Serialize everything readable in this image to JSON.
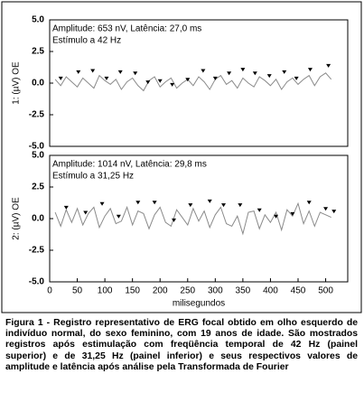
{
  "chart_data": [
    {
      "type": "line",
      "annotations": [
        "Amplitude: 653 nV, Latência:  27,0 ms",
        "Estímulo a 42 Hz"
      ],
      "ylabel": "1: (µV)  OE",
      "xlim": [
        0,
        540
      ],
      "ylim": [
        -5,
        5
      ],
      "yticks": [
        {
          "value": 5,
          "label": "5.0"
        },
        {
          "value": 2.5,
          "label": "2.5"
        },
        {
          "value": 0,
          "label": "0.0"
        },
        {
          "value": -2.5,
          "label": "-2.5"
        },
        {
          "value": -5,
          "label": "-5.0"
        }
      ],
      "series": [
        {
          "color": "#8a8a8a",
          "x": [
            10,
            20,
            30,
            40,
            50,
            60,
            70,
            80,
            90,
            100,
            110,
            120,
            130,
            140,
            150,
            160,
            170,
            180,
            190,
            200,
            210,
            220,
            230,
            240,
            250,
            260,
            270,
            280,
            290,
            300,
            310,
            320,
            330,
            340,
            350,
            360,
            370,
            380,
            390,
            400,
            410,
            420,
            430,
            440,
            450,
            460,
            470,
            480,
            490,
            500,
            510
          ],
          "values": [
            0.3,
            -0.2,
            0.5,
            0.1,
            -0.3,
            0.4,
            0.0,
            -0.4,
            0.6,
            0.2,
            -0.1,
            0.3,
            -0.5,
            0.1,
            0.4,
            -0.2,
            -0.6,
            0.2,
            0.5,
            -0.3,
            0.1,
            0.4,
            -0.4,
            0.0,
            0.3,
            -0.2,
            0.5,
            0.1,
            -0.5,
            0.3,
            0.6,
            -0.1,
            0.2,
            -0.4,
            0.4,
            0.0,
            -0.3,
            0.5,
            0.2,
            -0.2,
            0.3,
            -0.5,
            0.1,
            0.4,
            -0.1,
            0.3,
            0.6,
            -0.2,
            0.5,
            0.8,
            0.3
          ]
        },
        {
          "color": "#000000",
          "x": [
            20,
            52,
            78,
            103,
            128,
            155,
            178,
            200,
            222,
            250,
            278,
            300,
            325,
            350,
            372,
            398,
            425,
            447,
            472,
            505
          ],
          "values": [
            -0.1,
            0.4,
            0.5,
            -0.1,
            0.4,
            0.3,
            -0.4,
            -0.3,
            -0.6,
            -0.2,
            0.5,
            -0.1,
            0.3,
            0.6,
            0.3,
            0.1,
            0.4,
            -0.1,
            0.6,
            0.9
          ]
        }
      ]
    },
    {
      "type": "line",
      "annotations": [
        "Amplitude: 1014 nV, Latência:  29,8 ms",
        "Estímulo a 31,25 Hz"
      ],
      "ylabel": "2: (µV)  OE",
      "xlabel": "milisegundos",
      "xlim": [
        0,
        540
      ],
      "ylim": [
        -5,
        5
      ],
      "xticks": [
        0,
        50,
        100,
        150,
        200,
        250,
        300,
        350,
        400,
        450,
        500
      ],
      "yticks": [
        {
          "value": 5,
          "label": "5.0"
        },
        {
          "value": 2.5,
          "label": "2.5"
        },
        {
          "value": 0,
          "label": "0.0"
        },
        {
          "value": -2.5,
          "label": "-2.5"
        },
        {
          "value": -5,
          "label": "-5.0"
        }
      ],
      "series": [
        {
          "color": "#8a8a8a",
          "x": [
            10,
            20,
            30,
            40,
            50,
            60,
            70,
            80,
            90,
            100,
            110,
            120,
            130,
            140,
            150,
            160,
            170,
            180,
            190,
            200,
            210,
            220,
            230,
            240,
            250,
            260,
            270,
            280,
            290,
            300,
            310,
            320,
            330,
            340,
            350,
            360,
            370,
            380,
            390,
            400,
            410,
            420,
            430,
            440,
            450,
            460,
            470,
            480,
            490,
            500,
            510
          ],
          "values": [
            0.5,
            -0.6,
            0.7,
            -0.3,
            0.8,
            -0.5,
            0.4,
            0.9,
            -0.7,
            0.2,
            0.8,
            -0.4,
            -0.2,
            0.9,
            -0.5,
            0.6,
            0.4,
            -0.8,
            0.3,
            0.9,
            -0.3,
            -0.6,
            0.7,
            0.1,
            -0.5,
            0.8,
            -0.2,
            0.6,
            -0.7,
            0.3,
            0.9,
            -0.4,
            -0.6,
            0.2,
            -1.2,
            0.5,
            0.6,
            -0.8,
            0.3,
            -0.3,
            0.5,
            -0.9,
            0.7,
            0.2,
            1.2,
            -0.4,
            0.6,
            -0.6,
            0.5,
            0.3,
            0.1
          ]
        },
        {
          "color": "#000000",
          "x": [
            30,
            65,
            95,
            125,
            160,
            190,
            225,
            255,
            290,
            315,
            345,
            380,
            410,
            440,
            470,
            500,
            515
          ],
          "values": [
            0.4,
            0.0,
            0.7,
            -0.3,
            0.8,
            0.8,
            -0.6,
            0.6,
            0.9,
            0.6,
            0.6,
            0.2,
            -0.3,
            -0.1,
            0.8,
            0.3,
            0.1
          ]
        }
      ]
    }
  ],
  "caption": "Figura 1 - Registro representativo de ERG focal obtido em olho esquerdo de indivíduo normal, do sexo feminino, com 19 anos de idade. São mostrados registros após estimulação com freqüência temporal de 42 Hz (painel superior) e de 31,25 Hz (painel inferior) e seus respectivos valores de amplitude e latência após análise pela Transformada de Fourier"
}
